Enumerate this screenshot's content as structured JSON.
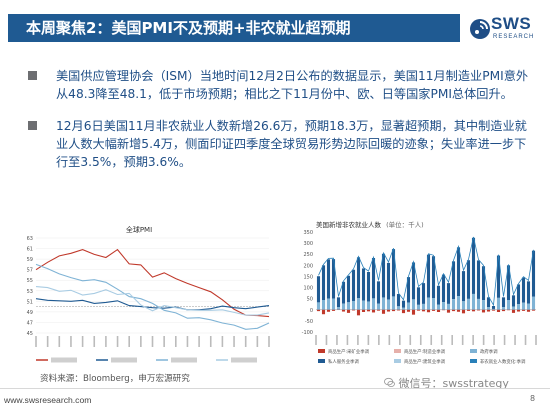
{
  "header": {
    "title": "本周聚焦2：美国PMI不及预期+非农就业超预期",
    "logo_text": "SWS",
    "logo_subtext": "RESEARCH"
  },
  "bullets": [
    "美国供应管理协会（ISM）当地时间12月2日公布的数据显示，美国11月制造业PMI意外从48.3降至48.1，低于市场预期；相比之下11月份中、欧、日等国家PMI总体回升。",
    "12月6日美国11月非农就业人数新增26.6万，预期18.3万，显著超预期，其中制造业就业人数大幅新增5.4万，侧面印证四季度全球贸易形势边际回暖的迹象；失业率进一步下行至3.5%，预期3.6%。"
  ],
  "charts": [
    {
      "title": "全球PMI",
      "type": "line",
      "y_ticks": [
        "63",
        "61",
        "59",
        "57",
        "55",
        "53",
        "51",
        "49",
        "47",
        "45"
      ],
      "ylim": [
        45,
        63
      ],
      "series": [
        {
          "color": "#c0392b",
          "values": [
            57.0,
            58.4,
            59.6,
            60.1,
            60.8,
            59.9,
            59.3,
            60.8,
            58.1,
            57.9,
            55.6,
            56.4,
            55.3,
            54.4,
            53.6,
            52.8,
            51.3,
            49.5,
            48.4,
            48.3,
            48.1
          ]
        },
        {
          "color": "#1f5a92",
          "values": [
            51.5,
            51.2,
            51.1,
            51.0,
            51.2,
            50.6,
            50.8,
            51.1,
            50.2,
            50.0,
            49.8,
            49.7,
            49.9,
            49.4,
            49.4,
            49.6,
            50.1,
            49.8,
            49.6,
            49.9,
            50.2
          ]
        },
        {
          "color": "#7fb3d5",
          "values": [
            58.0,
            57.2,
            56.2,
            55.5,
            54.9,
            55.1,
            54.6,
            53.3,
            51.9,
            51.5,
            50.6,
            49.3,
            48.8,
            47.8,
            47.9,
            47.5,
            46.9,
            46.5,
            45.7,
            45.9,
            46.9
          ]
        },
        {
          "color": "#a9cce3",
          "values": [
            53.8,
            53.6,
            52.9,
            53.1,
            52.2,
            52.5,
            53.2,
            52.3,
            52.5,
            50.3,
            49.2,
            50.2,
            49.8,
            49.4,
            49.3,
            49.3,
            49.4,
            48.9,
            48.4,
            48.4,
            48.8
          ]
        }
      ]
    },
    {
      "title": "美国新增非农就业人数",
      "unit": "(单位：千人)",
      "type": "bar",
      "y_ticks": [
        "350",
        "300",
        "250",
        "200",
        "150",
        "100",
        "50",
        "0",
        "-50",
        "-100"
      ],
      "ylim": [
        -100,
        350
      ],
      "values": [
        151,
        200,
        227,
        228,
        56,
        126,
        153,
        180,
        236,
        186,
        170,
        233,
        128,
        252,
        211,
        273,
        71,
        41,
        147,
        213,
        101,
        120,
        248,
        241,
        108,
        158,
        120,
        218,
        281,
        174,
        223,
        324,
        222,
        196,
        56,
        17,
        244,
        56,
        200,
        65,
        114,
        145,
        128,
        266
      ],
      "neg_values": [
        -6,
        -20,
        -9,
        -5,
        -1,
        -8,
        -14,
        -3,
        -25,
        -10,
        -7,
        -12,
        -4,
        -18,
        -8,
        -6,
        -3,
        -15,
        -9,
        -22,
        -4,
        -7,
        -11,
        -5,
        -10,
        -2,
        -13,
        -6,
        -9,
        -16,
        -5,
        -7,
        -3,
        -12,
        -8,
        -4,
        -10,
        -6,
        -2,
        -14,
        -8,
        -5,
        -9,
        -4
      ],
      "legend": [
        "商品生产:采矿业季调",
        "商品生产:制造业季调",
        "政府季调",
        "私人服务业季调",
        "商品生产:建筑业季调",
        "非农就业人数变化:季调"
      ]
    }
  ],
  "source": "资料来源：Bloomberg，申万宏源研究",
  "wechat": "微信号：swsstrategy",
  "footer": {
    "url": "www.swsresearch.com",
    "page": "8"
  }
}
